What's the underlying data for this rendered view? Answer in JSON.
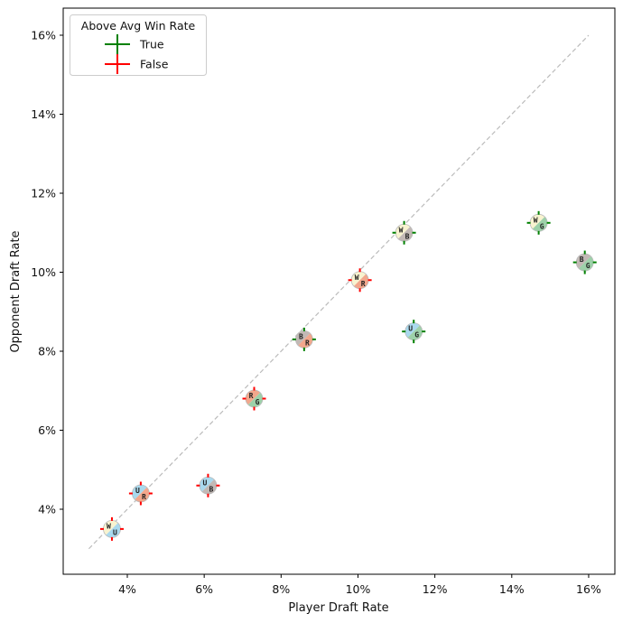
{
  "chart_data": {
    "type": "scatter",
    "title": "",
    "xlabel": "Player Draft Rate",
    "ylabel": "Opponent Draft Rate",
    "xlim": [
      2.4,
      16.7
    ],
    "ylim": [
      2.3,
      16.6
    ],
    "xticks": [
      4,
      6,
      8,
      10,
      12,
      14,
      16
    ],
    "yticks": [
      4,
      6,
      8,
      10,
      12,
      14,
      16
    ],
    "xtick_labels": [
      "4%",
      "6%",
      "8%",
      "10%",
      "12%",
      "14%",
      "16%"
    ],
    "ytick_labels": [
      "4%",
      "6%",
      "8%",
      "10%",
      "12%",
      "14%",
      "16%"
    ],
    "grid": false,
    "reference_line": {
      "from": [
        3,
        3
      ],
      "to": [
        16,
        16
      ],
      "style": "dashed",
      "color": "#bbbbbb"
    },
    "legend": {
      "title": "Above Avg Win Rate",
      "placement": "top-left",
      "entries": [
        {
          "label": "True",
          "color": "#008000"
        },
        {
          "label": "False",
          "color": "#ff0000"
        }
      ]
    },
    "mana_colors": {
      "W": "#f8f3d0",
      "U": "#a9d9ee",
      "B": "#c2b9b5",
      "R": "#f2a78c",
      "G": "#9dd1a9"
    },
    "points": [
      {
        "pair": [
          "W",
          "U"
        ],
        "x": 3.6,
        "y": 3.5,
        "above_avg": false
      },
      {
        "pair": [
          "U",
          "R"
        ],
        "x": 4.35,
        "y": 4.4,
        "above_avg": false
      },
      {
        "pair": [
          "U",
          "B"
        ],
        "x": 6.1,
        "y": 4.6,
        "above_avg": false
      },
      {
        "pair": [
          "R",
          "G"
        ],
        "x": 7.3,
        "y": 6.8,
        "above_avg": false
      },
      {
        "pair": [
          "B",
          "R"
        ],
        "x": 8.6,
        "y": 8.3,
        "above_avg": true
      },
      {
        "pair": [
          "W",
          "R"
        ],
        "x": 10.05,
        "y": 9.8,
        "above_avg": false
      },
      {
        "pair": [
          "W",
          "B"
        ],
        "x": 11.2,
        "y": 11.0,
        "above_avg": true
      },
      {
        "pair": [
          "U",
          "G"
        ],
        "x": 11.45,
        "y": 8.5,
        "above_avg": true
      },
      {
        "pair": [
          "W",
          "G"
        ],
        "x": 14.7,
        "y": 11.25,
        "above_avg": true
      },
      {
        "pair": [
          "B",
          "G"
        ],
        "x": 15.9,
        "y": 10.25,
        "above_avg": true
      }
    ]
  }
}
